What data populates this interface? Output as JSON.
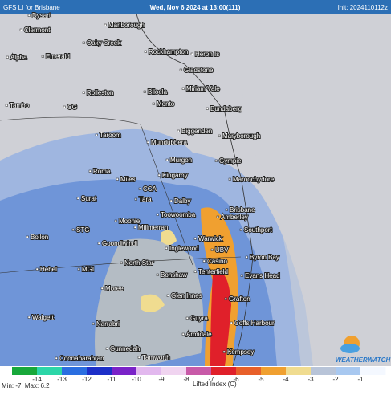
{
  "header": {
    "title": "GFS LI for Brisbane",
    "valid": "Wed, Nov 6 2024 at 13:00(111)",
    "init": "Init: 2024110112z"
  },
  "places": [
    "Dysart",
    "Clermont",
    "Marlborough",
    "Oaky Creek",
    "Rockhampton",
    "Heron Is",
    "Alpha",
    "Emerald",
    "Gladstone",
    "Miriam Vale",
    "Rolleston",
    "Biloela",
    "Tambo",
    "CG",
    "Monto",
    "Bundaberg",
    "Biggenden",
    "Maryborough",
    "Taroom",
    "Mundubbera",
    "Murgon",
    "Gympie",
    "Roma",
    "Miles",
    "Kingaroy",
    "Maroochydore",
    "CCA",
    "Surat",
    "Tara",
    "Dalby",
    "Brisbane",
    "Toowoomba",
    "Amberley",
    "Moonie",
    "Millmerran",
    "Southport",
    "STG",
    "Bollon",
    "Goondiwindi",
    "Inglewood",
    "Warwick",
    "UBV",
    "Byron Bay",
    "North Star",
    "Casino",
    "Hebel",
    "MGI",
    "Bonshaw",
    "Tenterfield",
    "Evans Head",
    "Moree",
    "Glen Innes",
    "Grafton",
    "Walgett",
    "Guyra",
    "Coffs Harbour",
    "Narrabri",
    "Armidale",
    "Gunnedah",
    "Kempsey",
    "Coonabarabran",
    "Tamworth"
  ],
  "legend": {
    "ticks": [
      -14,
      -13,
      -12,
      -11,
      -10,
      -9,
      -8,
      -7,
      -6,
      -5,
      -4,
      -3,
      -2,
      -1
    ],
    "colors": [
      "#18a83a",
      "#2cd6a8",
      "#2a6ee0",
      "#1c2fc8",
      "#7a22c8",
      "#e2b8ee",
      "#f0d4f0",
      "#c85aa8",
      "#e0202a",
      "#e8602a",
      "#f0a030",
      "#f0dc90",
      "#b8c4d8",
      "#a8c8f0",
      "#f4f8ff"
    ],
    "units": "Lifted Index (C)"
  },
  "stats": "Min: -7, Max: 6.2",
  "logo": "WEATHERWATCH"
}
